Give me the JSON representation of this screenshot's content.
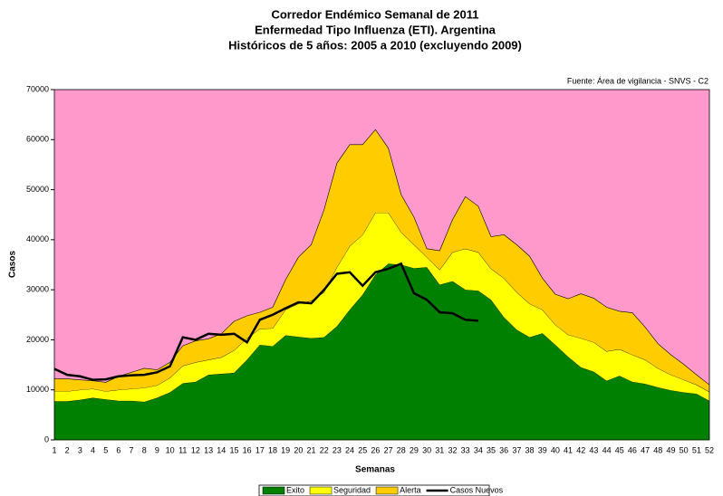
{
  "chart_data": {
    "type": "stacked-area",
    "title": [
      "Corredor Endémico Semanal de 2011",
      "Enfermedad Tipo Influenza (ETI).  Argentina",
      "Históricos de 5 años: 2005 a 2010 (excluyendo 2009)"
    ],
    "source": "Fuente: Área de vigilancia - SNVS - C2",
    "x_label": "Semanas",
    "y_label": "Casos",
    "plot_background": "#ff99cc",
    "categories": [
      1,
      2,
      3,
      4,
      5,
      6,
      7,
      8,
      9,
      10,
      11,
      12,
      13,
      14,
      15,
      16,
      17,
      18,
      19,
      20,
      21,
      22,
      23,
      24,
      25,
      26,
      27,
      28,
      29,
      30,
      31,
      32,
      33,
      34,
      35,
      36,
      37,
      38,
      39,
      40,
      41,
      42,
      43,
      44,
      45,
      46,
      47,
      48,
      49,
      50,
      51,
      52
    ],
    "ylim": [
      0,
      70000
    ],
    "yticks": [
      0,
      10000,
      20000,
      30000,
      40000,
      50000,
      60000,
      70000
    ],
    "series": [
      {
        "name": "Exito",
        "color": "#008000",
        "values": [
          7700,
          7700,
          8000,
          8400,
          8100,
          7800,
          7800,
          7600,
          8400,
          9500,
          11300,
          11600,
          13000,
          13200,
          13400,
          16000,
          19000,
          18700,
          20900,
          20600,
          20300,
          20500,
          22700,
          26000,
          29000,
          33000,
          35200,
          35000,
          34300,
          34500,
          31000,
          31700,
          30000,
          29800,
          28000,
          24500,
          22000,
          20500,
          21300,
          19000,
          16600,
          14500,
          13600,
          11800,
          12800,
          11600,
          11200,
          10500,
          9900,
          9500,
          9200,
          7800
        ]
      },
      {
        "name": "Seguridad",
        "color": "#ffff00",
        "values": [
          2000,
          2000,
          2000,
          1800,
          1600,
          2200,
          2400,
          2800,
          2500,
          2900,
          3500,
          3900,
          3000,
          3300,
          4500,
          4300,
          3200,
          3600,
          5100,
          6600,
          7500,
          9000,
          11800,
          12700,
          12000,
          12400,
          10200,
          6500,
          4700,
          2000,
          3000,
          5800,
          8200,
          7700,
          6200,
          7800,
          7500,
          6700,
          4700,
          4000,
          4400,
          5800,
          5900,
          5900,
          5300,
          5400,
          4800,
          3800,
          3100,
          2500,
          1800,
          1800
        ]
      },
      {
        "name": "Alerta",
        "color": "#ffcc00",
        "values": [
          2500,
          2500,
          2000,
          1600,
          1800,
          2700,
          3300,
          3900,
          3100,
          3100,
          4000,
          4300,
          4200,
          4700,
          5800,
          4500,
          3300,
          4200,
          6000,
          9300,
          11200,
          16500,
          20800,
          20300,
          18000,
          16600,
          12900,
          7500,
          5500,
          1700,
          3800,
          6500,
          10400,
          9200,
          6400,
          8700,
          9500,
          9500,
          6300,
          6100,
          7200,
          8900,
          8800,
          8800,
          7600,
          8400,
          6500,
          4900,
          4000,
          3100,
          2000,
          1400
        ]
      },
      {
        "name": "Casos Nuevos",
        "type": "line",
        "color": "#000000",
        "values": [
          14200,
          13000,
          12700,
          12000,
          12100,
          12700,
          12900,
          13000,
          13500,
          14700,
          20500,
          20000,
          21200,
          21000,
          21200,
          19500,
          24000,
          25000,
          26300,
          27500,
          27300,
          30000,
          33200,
          33500,
          30800,
          33500,
          34200,
          35200,
          29300,
          28000,
          25500,
          25300,
          24000,
          23800,
          null,
          null,
          null,
          null,
          null,
          null,
          null,
          null,
          null,
          null,
          null,
          null,
          null,
          null,
          null,
          null,
          null,
          null
        ]
      }
    ]
  }
}
